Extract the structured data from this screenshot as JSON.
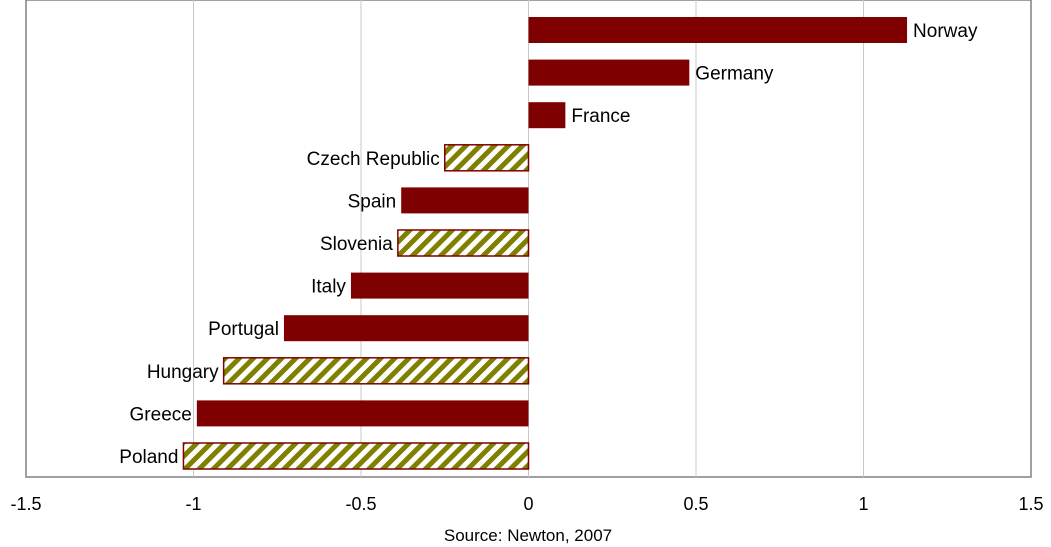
{
  "chart_data": {
    "type": "bar",
    "orientation": "horizontal",
    "categories": [
      "Norway",
      "Germany",
      "France",
      "Czech Republic",
      "Spain",
      "Slovenia",
      "Italy",
      "Portugal",
      "Hungary",
      "Greece",
      "Poland"
    ],
    "values": [
      1.13,
      0.48,
      0.11,
      -0.25,
      -0.38,
      -0.39,
      -0.53,
      -0.73,
      -0.91,
      -0.99,
      -1.03
    ],
    "hatched": [
      false,
      false,
      false,
      true,
      false,
      true,
      false,
      false,
      true,
      false,
      true
    ],
    "xlim": [
      -1.5,
      1.5
    ],
    "xticks": [
      "-1.5",
      "-1",
      "-0.5",
      "0",
      "0.5",
      "1",
      "1.5"
    ],
    "xlabel": "Source: Newton, 2007",
    "grid": "vertical",
    "legend": "none"
  },
  "colors": {
    "bar_solid": "#7f0000",
    "hatch_a": "#7f7f00",
    "hatch_b": "#ffffff",
    "grid": "#c8c8c8",
    "frame": "#808080"
  }
}
